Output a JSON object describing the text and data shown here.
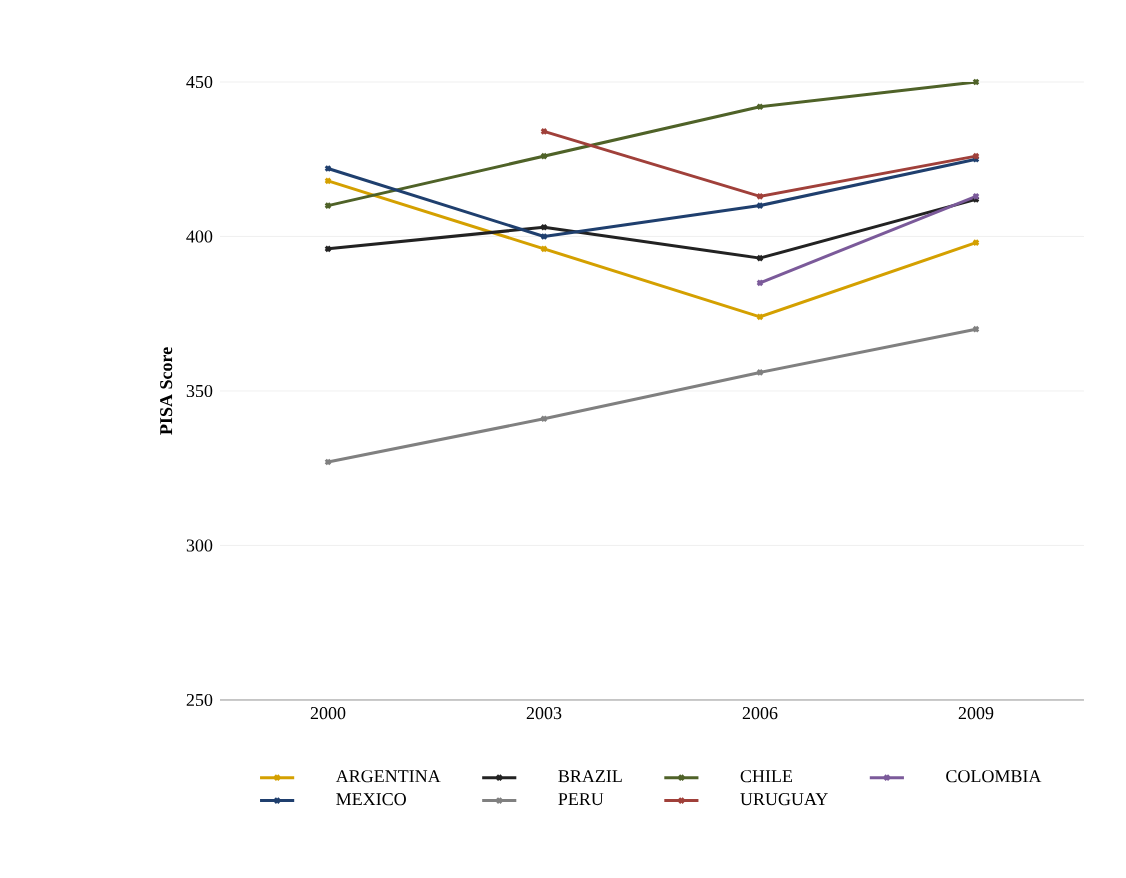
{
  "chart_data": {
    "type": "line",
    "ylabel": "PISA Score",
    "categories": [
      "2000",
      "2003",
      "2006",
      "2009"
    ],
    "ylim": [
      250,
      450
    ],
    "yticks": [
      250,
      300,
      350,
      400,
      450
    ],
    "grid": "y",
    "legend": "bottom",
    "marker": "cross",
    "line_style": "solid",
    "series": [
      {
        "name": "ARGENTINA",
        "color": "#d4a000",
        "values": [
          418,
          396,
          374,
          398
        ]
      },
      {
        "name": "BRAZIL",
        "color": "#222222",
        "values": [
          396,
          403,
          393,
          412
        ]
      },
      {
        "name": "CHILE",
        "color": "#4f6228",
        "values": [
          410,
          426,
          442,
          450
        ]
      },
      {
        "name": "COLOMBIA",
        "color": "#7b5a9a",
        "values": [
          null,
          null,
          385,
          413
        ]
      },
      {
        "name": "MEXICO",
        "color": "#1f3f6e",
        "values": [
          422,
          400,
          410,
          425
        ]
      },
      {
        "name": "PERU",
        "color": "#808080",
        "values": [
          327,
          341,
          356,
          370
        ]
      },
      {
        "name": "URUGUAY",
        "color": "#a0403a",
        "values": [
          null,
          434,
          413,
          426
        ]
      }
    ]
  }
}
